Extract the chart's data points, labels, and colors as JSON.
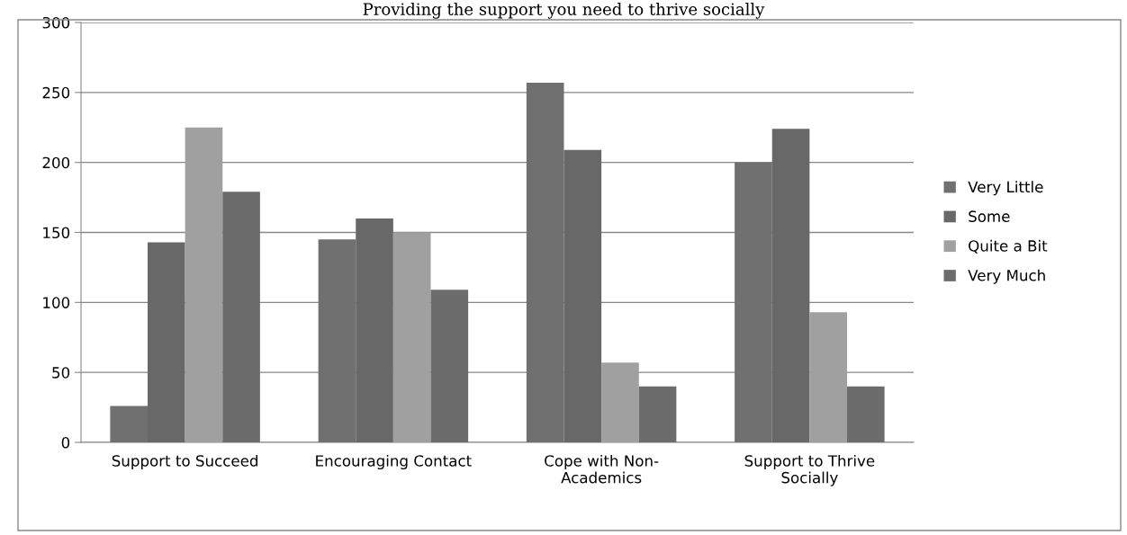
{
  "chart_data": {
    "type": "bar",
    "annotations": [
      "Providing the support you need to thrive socially"
    ],
    "categories": [
      "Support to Succeed",
      "Encouraging Contact",
      "Cope with Non-\nAcademics",
      "Support to Thrive\nSocially"
    ],
    "series": [
      {
        "name": "Very Little",
        "color": "#707070",
        "values": [
          26,
          145,
          257,
          200
        ]
      },
      {
        "name": "Some",
        "color": "#686868",
        "values": [
          143,
          160,
          209,
          224
        ]
      },
      {
        "name": "Quite a Bit",
        "color": "#a0a0a0",
        "values": [
          225,
          150,
          57,
          93
        ]
      },
      {
        "name": "Very Much",
        "color": "#6c6c6c",
        "values": [
          179,
          109,
          40,
          40
        ]
      }
    ],
    "ylim": [
      0,
      300
    ],
    "yticks": [
      0,
      50,
      100,
      150,
      200,
      250,
      300
    ],
    "grid": "y",
    "legend": "right"
  }
}
